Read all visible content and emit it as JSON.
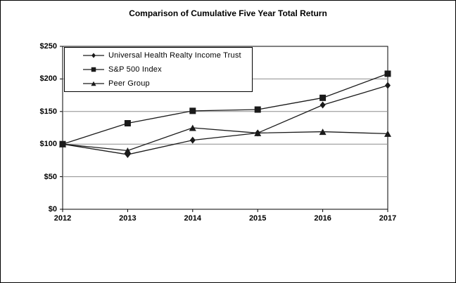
{
  "chart_data": {
    "type": "line",
    "title": "Comparison of Cumulative Five Year Total Return",
    "x": [
      2012,
      2013,
      2014,
      2015,
      2016,
      2017
    ],
    "x_tick_labels": [
      "2012",
      "2013",
      "2014",
      "2015",
      "2016",
      "2017"
    ],
    "y_tick_labels": [
      "$0",
      "$50",
      "$100",
      "$150",
      "$200",
      "$250"
    ],
    "ylim": [
      0,
      250
    ],
    "y_tick_step": 50,
    "grid": "horizontal",
    "legend_position": "top-left-inside",
    "series": [
      {
        "name": "Universal Health Realty Income Trust",
        "marker": "diamond",
        "values": [
          100,
          84,
          106,
          117,
          160,
          190
        ]
      },
      {
        "name": "S&P 500 Index",
        "marker": "square",
        "values": [
          100,
          132,
          151,
          153,
          171,
          208
        ]
      },
      {
        "name": "Peer Group",
        "marker": "triangle",
        "values": [
          100,
          90,
          125,
          117,
          119,
          116
        ]
      }
    ],
    "colors": {
      "line": "#1a1a1a",
      "grid": "#8c8c8c",
      "border": "#000000",
      "background": "#ffffff"
    }
  }
}
